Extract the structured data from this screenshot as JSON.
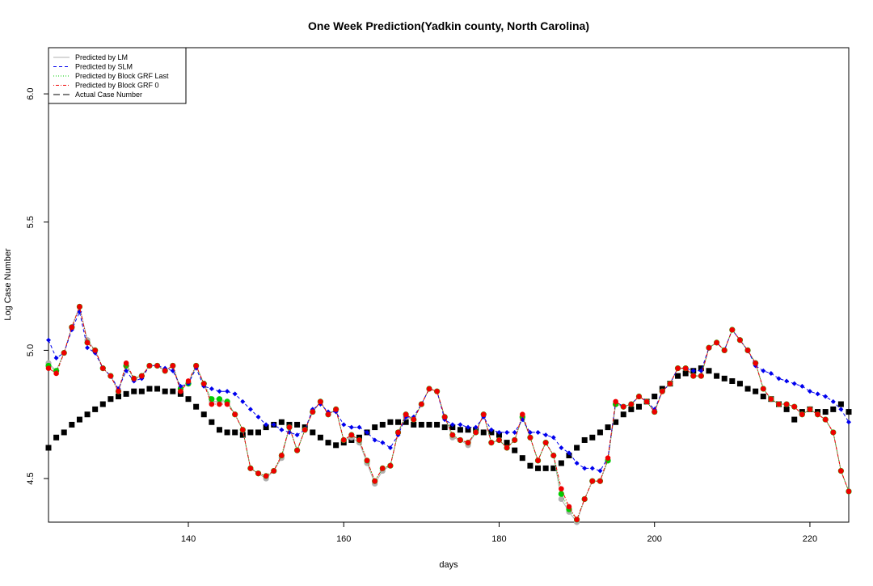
{
  "chart_data": {
    "type": "line",
    "title": "One Week Prediction(Yadkin county, North Carolina)",
    "xlabel": "days",
    "ylabel": "Log Case Number",
    "xlim": [
      122,
      225
    ],
    "ylim": [
      4.33,
      6.18
    ],
    "xticks": [
      140,
      160,
      180,
      200,
      220
    ],
    "xtick_labels": [
      "140",
      "160",
      "180",
      "200",
      "220"
    ],
    "yticks": [
      4.5,
      5.0,
      5.5,
      6.0
    ],
    "ytick_labels": [
      "4.5",
      "5.0",
      "5.5",
      "6.0"
    ],
    "grid": false,
    "legend_position": "top-left",
    "x": [
      122,
      123,
      124,
      125,
      126,
      127,
      128,
      129,
      130,
      131,
      132,
      133,
      134,
      135,
      136,
      137,
      138,
      139,
      140,
      141,
      142,
      143,
      144,
      145,
      146,
      147,
      148,
      149,
      150,
      151,
      152,
      153,
      154,
      155,
      156,
      157,
      158,
      159,
      160,
      161,
      162,
      163,
      164,
      165,
      166,
      167,
      168,
      169,
      170,
      171,
      172,
      173,
      174,
      175,
      176,
      177,
      178,
      179,
      180,
      181,
      182,
      183,
      184,
      185,
      186,
      187,
      188,
      189,
      190,
      191,
      192,
      193,
      194,
      195,
      196,
      197,
      198,
      199,
      200,
      201,
      202,
      203,
      204,
      205,
      206,
      207,
      208,
      209,
      210,
      211,
      212,
      213,
      214,
      215,
      216,
      217,
      218,
      219,
      220,
      221,
      222,
      223,
      224,
      225
    ],
    "series": [
      {
        "name": "Predicted by LM",
        "color": "#b0b0b0",
        "style": "solid",
        "marker": "circle",
        "values": [
          4.95,
          4.92,
          4.99,
          5.09,
          5.17,
          5.04,
          5.0,
          4.93,
          4.9,
          4.84,
          4.94,
          4.89,
          4.9,
          4.94,
          4.94,
          4.92,
          4.94,
          4.85,
          4.87,
          4.94,
          4.87,
          4.8,
          4.8,
          4.8,
          4.75,
          4.69,
          4.54,
          4.52,
          4.5,
          4.53,
          4.58,
          4.7,
          4.61,
          4.69,
          4.76,
          4.8,
          4.75,
          4.77,
          4.65,
          4.66,
          4.64,
          4.56,
          4.48,
          4.53,
          4.55,
          4.68,
          4.74,
          4.73,
          4.79,
          4.85,
          4.84,
          4.74,
          4.66,
          4.65,
          4.63,
          4.68,
          4.75,
          4.64,
          4.65,
          4.62,
          4.65,
          4.74,
          4.66,
          4.57,
          4.64,
          4.59,
          4.42,
          4.37,
          4.33,
          4.42,
          4.49,
          4.49,
          4.57,
          4.79,
          4.78,
          4.79,
          4.82,
          4.8,
          4.76,
          4.84,
          4.87,
          4.93,
          4.93,
          4.9,
          4.9,
          5.01,
          5.03,
          5.0,
          5.08,
          5.04,
          5.0,
          4.95,
          4.85,
          4.81,
          4.79,
          4.79,
          4.78,
          4.75,
          4.77,
          4.75,
          4.73,
          4.68,
          4.53,
          4.45
        ]
      },
      {
        "name": "Predicted by SLM",
        "color": "#0000ee",
        "style": "dashed",
        "marker": "diamond",
        "values": [
          5.04,
          4.97,
          4.99,
          5.08,
          5.15,
          5.01,
          4.99,
          4.93,
          4.9,
          4.85,
          4.92,
          4.88,
          4.89,
          4.94,
          4.94,
          4.93,
          4.92,
          4.86,
          4.87,
          4.93,
          4.86,
          4.85,
          4.84,
          4.84,
          4.83,
          4.8,
          4.77,
          4.74,
          4.71,
          4.71,
          4.69,
          4.68,
          4.67,
          4.69,
          4.77,
          4.79,
          4.76,
          4.76,
          4.71,
          4.7,
          4.7,
          4.68,
          4.65,
          4.64,
          4.62,
          4.67,
          4.74,
          4.74,
          4.79,
          4.85,
          4.84,
          4.73,
          4.71,
          4.71,
          4.7,
          4.7,
          4.74,
          4.69,
          4.68,
          4.68,
          4.68,
          4.73,
          4.68,
          4.68,
          4.67,
          4.66,
          4.62,
          4.6,
          4.56,
          4.54,
          4.54,
          4.53,
          4.58,
          4.8,
          4.78,
          4.79,
          4.82,
          4.8,
          4.77,
          4.84,
          4.87,
          4.93,
          4.93,
          4.92,
          4.92,
          5.01,
          5.03,
          5.0,
          5.08,
          5.04,
          5.0,
          4.94,
          4.92,
          4.91,
          4.89,
          4.88,
          4.87,
          4.86,
          4.84,
          4.83,
          4.82,
          4.8,
          4.77,
          4.72
        ]
      },
      {
        "name": "Predicted by Block GRF Last",
        "color": "#00cc00",
        "style": "dotted",
        "marker": "circle",
        "values": [
          4.94,
          4.92,
          4.99,
          5.09,
          5.17,
          5.03,
          5.0,
          4.93,
          4.9,
          4.84,
          4.94,
          4.89,
          4.9,
          4.94,
          4.94,
          4.92,
          4.94,
          4.85,
          4.87,
          4.94,
          4.87,
          4.81,
          4.81,
          4.8,
          4.75,
          4.69,
          4.54,
          4.52,
          4.51,
          4.53,
          4.59,
          4.7,
          4.61,
          4.69,
          4.76,
          4.8,
          4.75,
          4.77,
          4.65,
          4.67,
          4.65,
          4.57,
          4.49,
          4.54,
          4.55,
          4.68,
          4.75,
          4.73,
          4.79,
          4.85,
          4.84,
          4.74,
          4.67,
          4.65,
          4.64,
          4.68,
          4.75,
          4.64,
          4.65,
          4.62,
          4.65,
          4.74,
          4.66,
          4.57,
          4.64,
          4.59,
          4.44,
          4.38,
          4.34,
          4.42,
          4.49,
          4.49,
          4.57,
          4.79,
          4.78,
          4.79,
          4.82,
          4.8,
          4.76,
          4.84,
          4.87,
          4.93,
          4.93,
          4.9,
          4.9,
          5.01,
          5.03,
          5.0,
          5.08,
          5.04,
          5.0,
          4.95,
          4.85,
          4.81,
          4.79,
          4.79,
          4.78,
          4.75,
          4.77,
          4.75,
          4.73,
          4.68,
          4.53,
          4.45
        ]
      },
      {
        "name": "Predicted by Block GRF 0",
        "color": "#ee0000",
        "style": "dotdash",
        "marker": "circle",
        "values": [
          4.93,
          4.91,
          4.99,
          5.09,
          5.17,
          5.03,
          5.0,
          4.93,
          4.9,
          4.84,
          4.95,
          4.89,
          4.9,
          4.94,
          4.94,
          4.92,
          4.94,
          4.84,
          4.88,
          4.94,
          4.87,
          4.79,
          4.79,
          4.79,
          4.75,
          4.69,
          4.54,
          4.52,
          4.51,
          4.53,
          4.59,
          4.7,
          4.61,
          4.69,
          4.76,
          4.8,
          4.75,
          4.77,
          4.65,
          4.67,
          4.65,
          4.57,
          4.49,
          4.54,
          4.55,
          4.68,
          4.75,
          4.73,
          4.79,
          4.85,
          4.84,
          4.74,
          4.67,
          4.65,
          4.64,
          4.68,
          4.75,
          4.64,
          4.65,
          4.62,
          4.65,
          4.75,
          4.66,
          4.57,
          4.64,
          4.59,
          4.46,
          4.39,
          4.34,
          4.42,
          4.49,
          4.49,
          4.58,
          4.8,
          4.78,
          4.79,
          4.82,
          4.8,
          4.76,
          4.84,
          4.87,
          4.93,
          4.93,
          4.9,
          4.9,
          5.01,
          5.03,
          5.0,
          5.08,
          5.04,
          5.0,
          4.95,
          4.85,
          4.81,
          4.79,
          4.79,
          4.78,
          4.75,
          4.77,
          4.75,
          4.73,
          4.68,
          4.53,
          4.45
        ]
      },
      {
        "name": "Actual Case Number",
        "color": "#000000",
        "style": "longdash",
        "marker": "square",
        "values": [
          4.62,
          4.66,
          4.68,
          4.71,
          4.73,
          4.75,
          4.77,
          4.79,
          4.81,
          4.82,
          4.83,
          4.84,
          4.84,
          4.85,
          4.85,
          4.84,
          4.84,
          4.83,
          4.81,
          4.78,
          4.75,
          4.72,
          4.69,
          4.68,
          4.68,
          4.67,
          4.68,
          4.68,
          4.7,
          4.71,
          4.72,
          4.71,
          4.71,
          4.7,
          4.68,
          4.66,
          4.64,
          4.63,
          4.64,
          4.65,
          4.66,
          4.68,
          4.7,
          4.71,
          4.72,
          4.72,
          4.72,
          4.71,
          4.71,
          4.71,
          4.71,
          4.7,
          4.7,
          4.69,
          4.69,
          4.69,
          4.68,
          4.68,
          4.67,
          4.64,
          4.61,
          4.58,
          4.55,
          4.54,
          4.54,
          4.54,
          4.56,
          4.59,
          4.62,
          4.65,
          4.66,
          4.68,
          4.7,
          4.72,
          4.75,
          4.77,
          4.78,
          4.8,
          4.82,
          4.85,
          4.87,
          4.9,
          4.91,
          4.92,
          4.93,
          4.92,
          4.9,
          4.89,
          4.88,
          4.87,
          4.85,
          4.84,
          4.82,
          4.81,
          4.79,
          4.77,
          4.73,
          4.76,
          4.77,
          4.76,
          4.76,
          4.77,
          4.79,
          4.76
        ]
      }
    ]
  }
}
